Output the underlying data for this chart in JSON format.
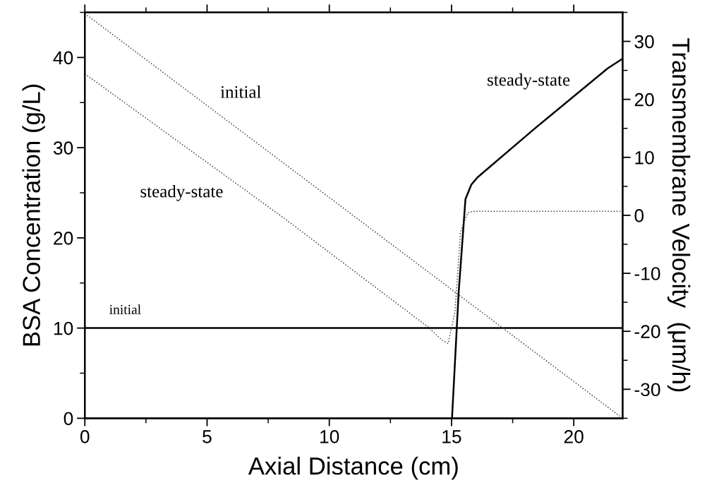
{
  "chart_data": {
    "type": "line",
    "xlabel": "Axial Distance (cm)",
    "ylabel": "BSA Concentration (g/L)",
    "y2label": "Transmembrane Velocity  (μm/h)",
    "xlim": [
      0,
      22
    ],
    "xticks": [
      0,
      5,
      10,
      15,
      20
    ],
    "ylim": [
      0,
      45
    ],
    "yticks": [
      0,
      10,
      20,
      30,
      40
    ],
    "y2lim": [
      -35,
      35
    ],
    "y2ticks": [
      -30,
      -20,
      -10,
      0,
      10,
      20,
      30
    ],
    "grid": false,
    "legend": false,
    "marker": "none",
    "series": [
      {
        "color": "#000000",
        "line_style": "solid",
        "axis": "y",
        "x": [
          0,
          22
        ],
        "values": [
          10,
          10
        ]
      },
      {
        "color": "#000000",
        "line_style": "solid",
        "axis": "y",
        "x": [
          15.02,
          15.29,
          15.57,
          15.81,
          16.06,
          18.35,
          21.39,
          21.96
        ],
        "values": [
          0,
          13.9,
          24.3,
          25.9,
          26.7,
          32.0,
          38.8,
          39.8
        ]
      },
      {
        "color": "#444444",
        "line_style": "dotted",
        "axis": "y2",
        "x": [
          0,
          22
        ],
        "values": [
          34.8,
          -35
        ]
      },
      {
        "color": "#444444",
        "line_style": "dotted",
        "axis": "y2",
        "x": [
          0,
          8.12,
          14.05,
          14.63,
          14.86,
          15.14,
          15.37,
          15.66,
          15.9,
          22
        ],
        "values": [
          24.4,
          -0.4,
          -19.3,
          -21.6,
          -22.1,
          -16.7,
          -2.8,
          0.4,
          0.7,
          0.7
        ]
      }
    ],
    "annotations": [
      "initial",
      "steady-state",
      "steady-state",
      "initial"
    ]
  }
}
